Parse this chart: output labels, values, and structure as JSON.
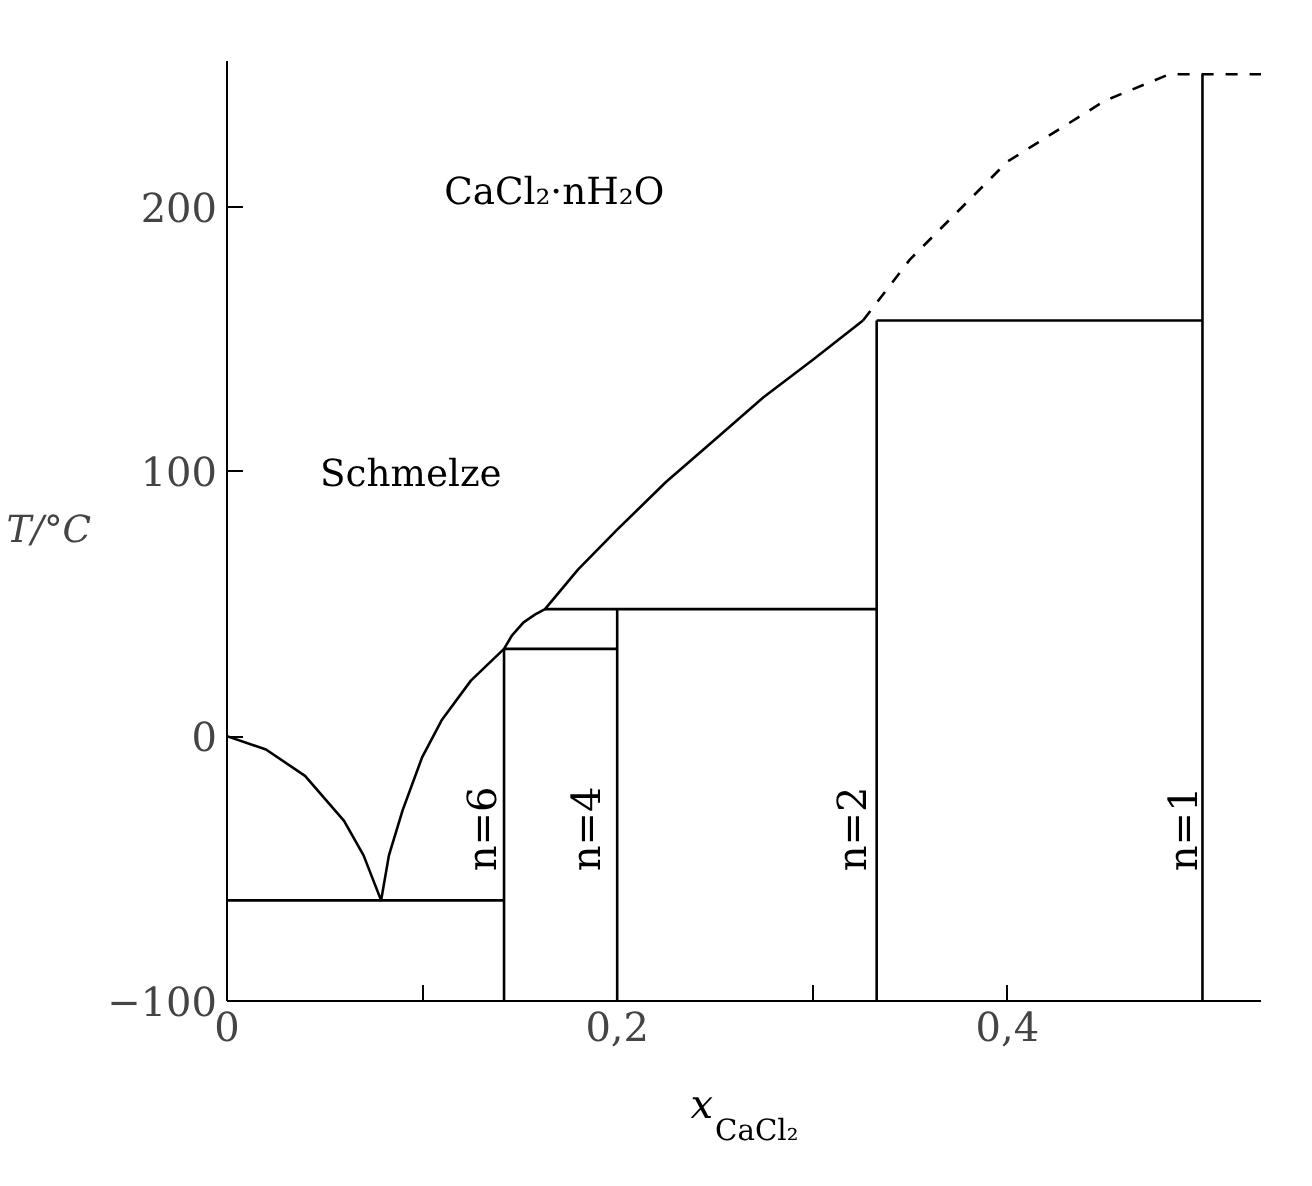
{
  "chart_data": {
    "type": "line",
    "xlabel": "x$_{CaCl₂}$",
    "ylabel": "T/°C",
    "xlim": [
      0,
      0.53
    ],
    "ylim": [
      -100,
      255
    ],
    "xticks": [
      0,
      {
        "value": 0.1,
        "label": null
      },
      {
        "value": 0.2,
        "label": "0,2"
      },
      {
        "value": 0.3,
        "label": null
      },
      {
        "value": 0.4,
        "label": "0,4"
      }
    ],
    "yticks": [
      {
        "value": -100,
        "label": "−100"
      },
      0,
      100,
      200
    ],
    "grid": false,
    "marker": "none",
    "annotations": [
      "CaCl₂·nH₂O",
      "Schmelze",
      "n=6",
      "n=4",
      "n=2",
      "n=1"
    ],
    "series": [
      {
        "x": [
          0,
          0.02,
          0.04,
          0.06,
          0.07,
          0.079,
          0.083,
          0.09,
          0.1,
          0.11,
          0.125,
          0.142,
          0.146,
          0.152,
          0.158,
          0.163,
          0.18,
          0.2,
          0.225,
          0.25,
          0.275,
          0.3,
          0.326
        ],
        "values": [
          0,
          -5,
          -15,
          -32,
          -45,
          -62,
          -45,
          -28,
          -8,
          6,
          21,
          33,
          38,
          43,
          46,
          48,
          63,
          78,
          96,
          112,
          128,
          142,
          157
        ],
        "color": "#000000",
        "line_style": "solid"
      },
      {
        "x": [
          0.326,
          0.35,
          0.4,
          0.45,
          0.483,
          0.53
        ],
        "values": [
          157,
          180,
          217,
          240,
          250,
          250
        ],
        "color": "#000000",
        "line_style": "dashed"
      },
      {
        "x": [
          0,
          0.142
        ],
        "values": [
          -62,
          -62
        ],
        "color": "#000000",
        "line_style": "solid"
      },
      {
        "x": [
          0.142,
          0.142
        ],
        "values": [
          -100,
          33
        ],
        "color": "#000000",
        "line_style": "solid"
      },
      {
        "x": [
          0.142,
          0.2
        ],
        "values": [
          33,
          33
        ],
        "color": "#000000",
        "line_style": "solid"
      },
      {
        "x": [
          0.2,
          0.2
        ],
        "values": [
          -100,
          48
        ],
        "color": "#000000",
        "line_style": "solid"
      },
      {
        "x": [
          0.163,
          0.333
        ],
        "values": [
          48,
          48
        ],
        "color": "#000000",
        "line_style": "solid"
      },
      {
        "x": [
          0.333,
          0.333
        ],
        "values": [
          -100,
          157
        ],
        "color": "#000000",
        "line_style": "solid"
      },
      {
        "x": [
          0.333,
          0.5
        ],
        "values": [
          157,
          157
        ],
        "color": "#000000",
        "line_style": "solid"
      },
      {
        "x": [
          0.5,
          0.5
        ],
        "values": [
          -100,
          250
        ],
        "color": "#000000",
        "line_style": "solid"
      }
    ]
  }
}
